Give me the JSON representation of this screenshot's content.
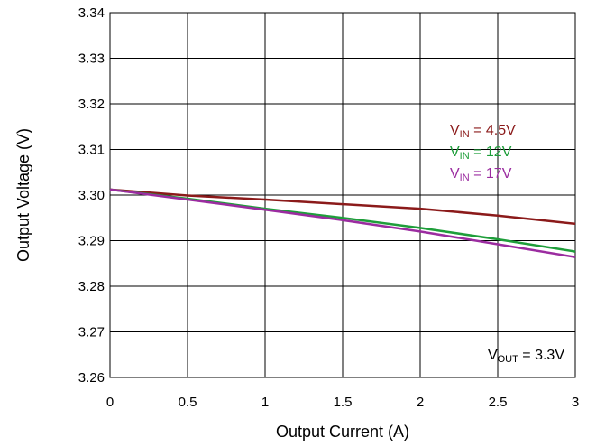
{
  "chart_data": {
    "type": "line",
    "xlabel": "Output Current (A)",
    "ylabel": "Output Voltage (V)",
    "xlim": [
      0,
      3
    ],
    "ylim": [
      3.26,
      3.34
    ],
    "grid": true,
    "xticks": [
      "0",
      "0.5",
      "1",
      "1.5",
      "2",
      "2.5",
      "3"
    ],
    "yticks": [
      "3.26",
      "3.27",
      "3.28",
      "3.29",
      "3.30",
      "3.31",
      "3.32",
      "3.33",
      "3.34"
    ],
    "legend_position": "right, middle",
    "series": [
      {
        "name": "VIN = 4.5V",
        "name_parts": [
          "V",
          "IN",
          " = 4.5V"
        ],
        "color": "#8b1a1a",
        "x": [
          0,
          0.5,
          1,
          1.5,
          2,
          2.5,
          3
        ],
        "y": [
          3.3012,
          3.2999,
          3.299,
          3.298,
          3.297,
          3.2955,
          3.2937
        ]
      },
      {
        "name": "VIN = 12V",
        "name_parts": [
          "V",
          "IN",
          " = 12V"
        ],
        "color": "#1e9e3a",
        "x": [
          0,
          0.5,
          1,
          1.5,
          2,
          2.5,
          3
        ],
        "y": [
          3.3012,
          3.2992,
          3.297,
          3.295,
          3.2928,
          3.2903,
          3.2876
        ]
      },
      {
        "name": "VIN = 17V",
        "name_parts": [
          "V",
          "IN",
          " = 17V"
        ],
        "color": "#9b2ca0",
        "x": [
          0,
          0.5,
          1,
          1.5,
          2,
          2.5,
          3
        ],
        "y": [
          3.3012,
          3.299,
          3.2968,
          3.2945,
          3.292,
          3.2892,
          3.2864
        ]
      }
    ],
    "annotation": {
      "parts": [
        "V",
        "OUT",
        " = 3.3V"
      ],
      "text": "VOUT = 3.3V"
    }
  }
}
